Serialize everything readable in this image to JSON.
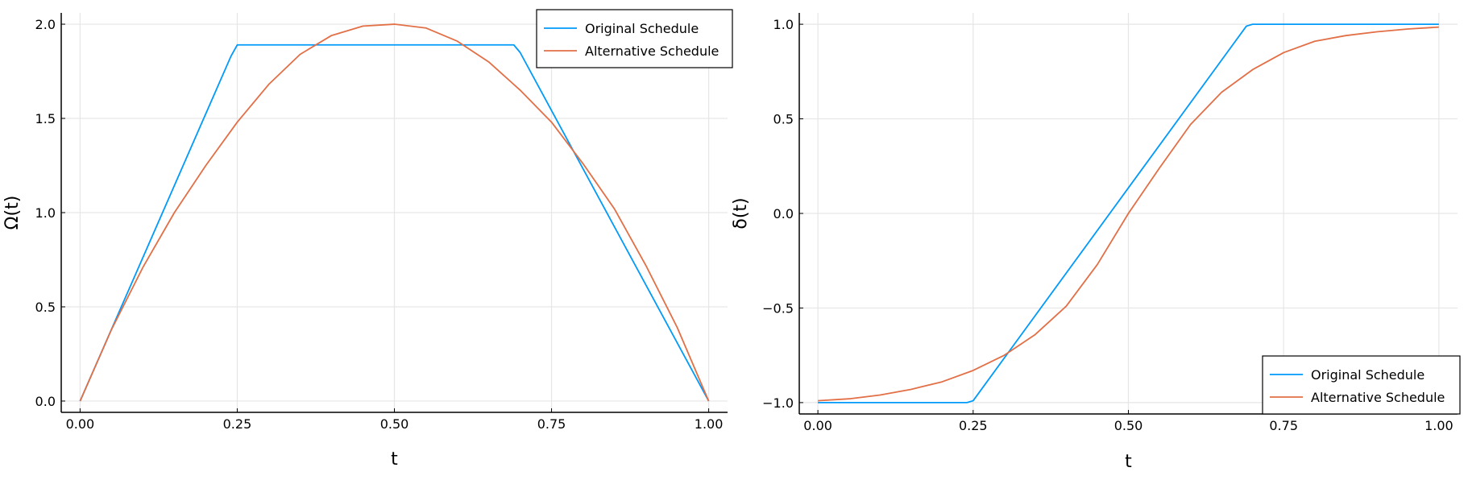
{
  "chart_data": [
    {
      "type": "line",
      "xlabel": "t",
      "ylabel": "Ω(t)",
      "xlim": [
        -0.03,
        1.03
      ],
      "ylim": [
        -0.06,
        2.06
      ],
      "xticks": [
        0,
        0.25,
        0.5,
        0.75,
        1
      ],
      "xtick_labels": [
        "0.00",
        "0.25",
        "0.50",
        "0.75",
        "1.00"
      ],
      "yticks": [
        0,
        0.5,
        1,
        1.5,
        2
      ],
      "ytick_labels": [
        "0.0",
        "0.5",
        "1.0",
        "1.5",
        "2.0"
      ],
      "grid": true,
      "legend_position": "top-right",
      "series": [
        {
          "name": "Original Schedule",
          "color": "#009AFA",
          "x": [
            0,
            0.24,
            0.25,
            0.69,
            0.7,
            1.0
          ],
          "y": [
            0,
            1.83,
            1.89,
            1.89,
            1.85,
            0
          ]
        },
        {
          "name": "Alternative Schedule",
          "color": "#E26F46",
          "x": [
            0,
            0.05,
            0.1,
            0.15,
            0.2,
            0.25,
            0.3,
            0.35,
            0.4,
            0.45,
            0.5,
            0.55,
            0.6,
            0.65,
            0.7,
            0.75,
            0.8,
            0.85,
            0.9,
            0.95,
            1.0
          ],
          "y": [
            0,
            0.38,
            0.71,
            1.0,
            1.25,
            1.48,
            1.68,
            1.84,
            1.94,
            1.99,
            2.0,
            1.98,
            1.91,
            1.8,
            1.65,
            1.48,
            1.26,
            1.02,
            0.72,
            0.39,
            0
          ]
        }
      ]
    },
    {
      "type": "line",
      "xlabel": "t",
      "ylabel": "δ(t)",
      "xlim": [
        -0.03,
        1.03
      ],
      "ylim": [
        -1.06,
        1.06
      ],
      "xticks": [
        0,
        0.25,
        0.5,
        0.75,
        1
      ],
      "xtick_labels": [
        "0.00",
        "0.25",
        "0.50",
        "0.75",
        "1.00"
      ],
      "yticks": [
        -1,
        -0.5,
        0,
        0.5,
        1
      ],
      "ytick_labels": [
        "−1.0",
        "−0.5",
        "0.0",
        "0.5",
        "1.0"
      ],
      "grid": true,
      "legend_position": "bottom-right",
      "series": [
        {
          "name": "Original Schedule",
          "color": "#009AFA",
          "x": [
            0,
            0.24,
            0.25,
            0.69,
            0.7,
            1.0
          ],
          "y": [
            -1,
            -1,
            -0.99,
            0.99,
            1,
            1
          ]
        },
        {
          "name": "Alternative Schedule",
          "color": "#E26F46",
          "x": [
            0,
            0.05,
            0.1,
            0.15,
            0.2,
            0.25,
            0.3,
            0.35,
            0.4,
            0.45,
            0.5,
            0.55,
            0.6,
            0.65,
            0.7,
            0.75,
            0.8,
            0.85,
            0.9,
            0.95,
            1.0
          ],
          "y": [
            -0.99,
            -0.98,
            -0.96,
            -0.93,
            -0.89,
            -0.83,
            -0.75,
            -0.64,
            -0.49,
            -0.27,
            0,
            0.24,
            0.47,
            0.64,
            0.76,
            0.85,
            0.91,
            0.94,
            0.96,
            0.975,
            0.985
          ]
        }
      ]
    }
  ]
}
